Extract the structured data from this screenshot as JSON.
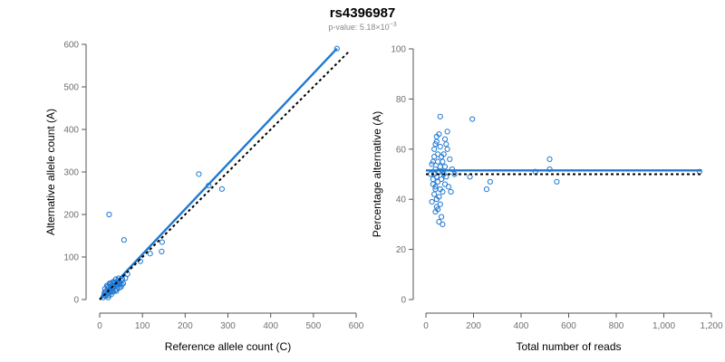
{
  "header": {
    "title": "rs4396987",
    "subtitle_prefix": "p-value: 5.18×10",
    "subtitle_exponent": "−3"
  },
  "colors": {
    "accent": "#1f78d1",
    "reference_line": "#000000",
    "axis": "#555555",
    "tick_text": "#707070"
  },
  "chart_data": [
    {
      "type": "scatter",
      "xlabel": "Reference allele count (C)",
      "ylabel": "Alternative allele count (A)",
      "xlim": [
        0,
        600
      ],
      "ylim": [
        0,
        600
      ],
      "xticks": [
        0,
        100,
        200,
        300,
        400,
        500,
        600
      ],
      "yticks": [
        0,
        100,
        200,
        300,
        400,
        500,
        600
      ],
      "xtick_labels": [
        "0",
        "100",
        "200",
        "300",
        "400",
        "500",
        "600"
      ],
      "ytick_labels": [
        "0",
        "100",
        "200",
        "300",
        "400",
        "500",
        "600"
      ],
      "grid": false,
      "points": [
        [
          555,
          590
        ],
        [
          232,
          295
        ],
        [
          286,
          260
        ],
        [
          255,
          268
        ],
        [
          57,
          140
        ],
        [
          146,
          135
        ],
        [
          145,
          113
        ],
        [
          22,
          200
        ],
        [
          95,
          90
        ],
        [
          118,
          108
        ],
        [
          60,
          50
        ],
        [
          65,
          60
        ],
        [
          50,
          45
        ],
        [
          10,
          10
        ],
        [
          15,
          20
        ],
        [
          20,
          15
        ],
        [
          25,
          30
        ],
        [
          30,
          25
        ],
        [
          35,
          40
        ],
        [
          40,
          35
        ],
        [
          45,
          38
        ],
        [
          12,
          25
        ],
        [
          18,
          30
        ],
        [
          28,
          20
        ],
        [
          33,
          28
        ],
        [
          38,
          48
        ],
        [
          42,
          30
        ],
        [
          48,
          40
        ],
        [
          26,
          38
        ],
        [
          16,
          12
        ],
        [
          22,
          22
        ],
        [
          30,
          35
        ],
        [
          36,
          22
        ],
        [
          44,
          50
        ],
        [
          52,
          35
        ],
        [
          20,
          5
        ],
        [
          14,
          8
        ],
        [
          24,
          18
        ],
        [
          32,
          42
        ],
        [
          40,
          25
        ],
        [
          46,
          28
        ],
        [
          8,
          5
        ],
        [
          11,
          15
        ],
        [
          19,
          27
        ],
        [
          27,
          12
        ],
        [
          34,
          30
        ],
        [
          39,
          20
        ],
        [
          43,
          45
        ],
        [
          50,
          30
        ],
        [
          55,
          38
        ],
        [
          17,
          33
        ],
        [
          23,
          38
        ],
        [
          29,
          40
        ],
        [
          37,
          33
        ],
        [
          41,
          40
        ],
        [
          47,
          36
        ],
        [
          53,
          48
        ],
        [
          13,
          18
        ],
        [
          21,
          10
        ],
        [
          31,
          18
        ]
      ],
      "lines": [
        {
          "name": "",
          "style": "solid",
          "color": "#1f78d1",
          "from": [
            0,
            0
          ],
          "to": [
            555,
            590
          ]
        },
        {
          "name": "",
          "style": "dotted",
          "color": "#000000",
          "from": [
            0,
            0
          ],
          "to": [
            585,
            585
          ]
        }
      ]
    },
    {
      "type": "scatter",
      "xlabel": "Total number of reads",
      "ylabel": "Percentage alternative (A)",
      "xlim": [
        0,
        1200
      ],
      "ylim": [
        0,
        100
      ],
      "xticks": [
        0,
        200,
        400,
        600,
        800,
        1000,
        1200
      ],
      "yticks": [
        0,
        20,
        40,
        60,
        80,
        100
      ],
      "xtick_labels": [
        "0",
        "200",
        "400",
        "600",
        "800",
        "1,000",
        "1,200"
      ],
      "ytick_labels": [
        "0",
        "20",
        "40",
        "60",
        "80",
        "100"
      ],
      "grid": false,
      "points": [
        [
          1150,
          51
        ],
        [
          520,
          56
        ],
        [
          520,
          52
        ],
        [
          550,
          47
        ],
        [
          460,
          51
        ],
        [
          270,
          47
        ],
        [
          255,
          44
        ],
        [
          195,
          72
        ],
        [
          185,
          49
        ],
        [
          60,
          73
        ],
        [
          90,
          67
        ],
        [
          80,
          64
        ],
        [
          55,
          66
        ],
        [
          45,
          65
        ],
        [
          40,
          62
        ],
        [
          35,
          60
        ],
        [
          50,
          58
        ],
        [
          65,
          57
        ],
        [
          70,
          55
        ],
        [
          30,
          55
        ],
        [
          25,
          54
        ],
        [
          60,
          53
        ],
        [
          40,
          52
        ],
        [
          55,
          51
        ],
        [
          75,
          50
        ],
        [
          35,
          50
        ],
        [
          45,
          49
        ],
        [
          65,
          48
        ],
        [
          50,
          47
        ],
        [
          30,
          46
        ],
        [
          80,
          46
        ],
        [
          40,
          45
        ],
        [
          60,
          44
        ],
        [
          70,
          43
        ],
        [
          35,
          42
        ],
        [
          55,
          41
        ],
        [
          45,
          40
        ],
        [
          25,
          39
        ],
        [
          60,
          38
        ],
        [
          50,
          36
        ],
        [
          40,
          35
        ],
        [
          65,
          33
        ],
        [
          55,
          31
        ],
        [
          70,
          30
        ],
        [
          45,
          37
        ],
        [
          90,
          60
        ],
        [
          100,
          56
        ],
        [
          110,
          52
        ],
        [
          85,
          49
        ],
        [
          95,
          45
        ],
        [
          105,
          43
        ],
        [
          120,
          50
        ],
        [
          75,
          58
        ],
        [
          85,
          62
        ],
        [
          30,
          48
        ],
        [
          20,
          50
        ],
        [
          35,
          57
        ],
        [
          60,
          61
        ],
        [
          45,
          63
        ],
        [
          80,
          53
        ],
        [
          50,
          55
        ],
        [
          70,
          51
        ],
        [
          40,
          44
        ]
      ],
      "lines": [
        {
          "name": "",
          "style": "solid",
          "color": "#1f78d1",
          "from": [
            0,
            51.5
          ],
          "to": [
            1160,
            51.5
          ]
        },
        {
          "name": "",
          "style": "dotted",
          "color": "#000000",
          "from": [
            0,
            50
          ],
          "to": [
            1160,
            50
          ]
        }
      ]
    }
  ]
}
